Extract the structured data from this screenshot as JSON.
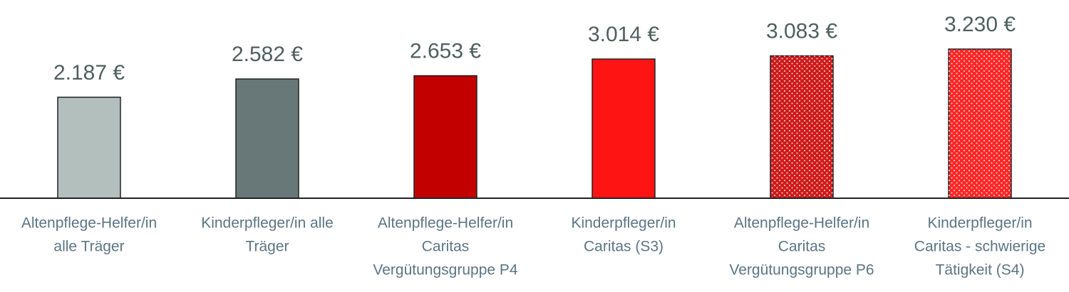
{
  "chart_data": {
    "type": "bar",
    "categories": [
      [
        "Altenpflege-Helfer/in",
        "alle Träger"
      ],
      [
        "Kinderpfleger/in alle",
        "Träger"
      ],
      [
        "Altenpflege-Helfer/in",
        "Caritas",
        "Vergütungsgruppe P4"
      ],
      [
        "Kinderpfleger/in",
        "Caritas (S3)"
      ],
      [
        "Altenpflege-Helfer/in",
        "Caritas",
        "Vergütungsgruppe P6"
      ],
      [
        "Kinderpfleger/in",
        "Caritas - schwierige",
        "Tätigkeit (S4)"
      ]
    ],
    "values": [
      2187,
      2582,
      2653,
      3014,
      3083,
      3230
    ],
    "value_labels": [
      "2.187 €",
      "2.582 €",
      "2.653 €",
      "3.014 €",
      "3.083 €",
      "3.230 €"
    ],
    "colors": [
      "#b3bfbd",
      "#687878",
      "#c20000",
      "#ff1414",
      "#d01a1a",
      "#ff2626"
    ],
    "dotted": [
      false,
      false,
      false,
      false,
      true,
      true
    ]
  }
}
